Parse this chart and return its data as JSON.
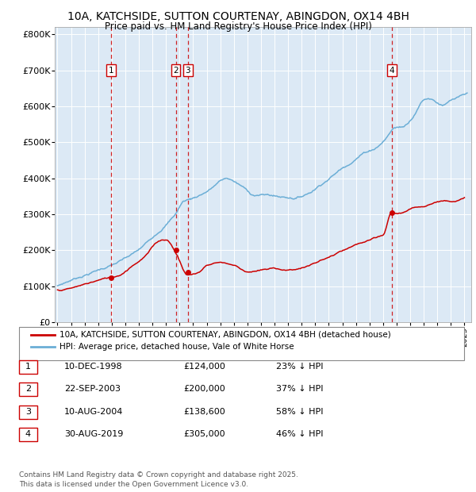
{
  "title_line1": "10A, KATCHSIDE, SUTTON COURTENAY, ABINGDON, OX14 4BH",
  "title_line2": "Price paid vs. HM Land Registry's House Price Index (HPI)",
  "background_color": "#dce9f5",
  "hpi_color": "#6baed6",
  "price_color": "#cc0000",
  "ylabel_values": [
    "£0",
    "£100K",
    "£200K",
    "£300K",
    "£400K",
    "£500K",
    "£600K",
    "£700K",
    "£800K"
  ],
  "ytick_values": [
    0,
    100000,
    200000,
    300000,
    400000,
    500000,
    600000,
    700000,
    800000
  ],
  "xmin": 1994.8,
  "xmax": 2025.5,
  "ymin": 0,
  "ymax": 820000,
  "transactions": [
    {
      "year": 1998.95,
      "price": 124000,
      "label": "1"
    },
    {
      "year": 2003.72,
      "price": 200000,
      "label": "2"
    },
    {
      "year": 2004.6,
      "price": 138600,
      "label": "3"
    },
    {
      "year": 2019.66,
      "price": 305000,
      "label": "4"
    }
  ],
  "legend_entries": [
    {
      "label": "10A, KATCHSIDE, SUTTON COURTENAY, ABINGDON, OX14 4BH (detached house)",
      "color": "#cc0000"
    },
    {
      "label": "HPI: Average price, detached house, Vale of White Horse",
      "color": "#6baed6"
    }
  ],
  "table_rows": [
    {
      "num": "1",
      "date": "10-DEC-1998",
      "price": "£124,000",
      "pct": "23% ↓ HPI"
    },
    {
      "num": "2",
      "date": "22-SEP-2003",
      "price": "£200,000",
      "pct": "37% ↓ HPI"
    },
    {
      "num": "3",
      "date": "10-AUG-2004",
      "price": "£138,600",
      "pct": "58% ↓ HPI"
    },
    {
      "num": "4",
      "date": "30-AUG-2019",
      "price": "£305,000",
      "pct": "46% ↓ HPI"
    }
  ],
  "footer": "Contains HM Land Registry data © Crown copyright and database right 2025.\nThis data is licensed under the Open Government Licence v3.0."
}
